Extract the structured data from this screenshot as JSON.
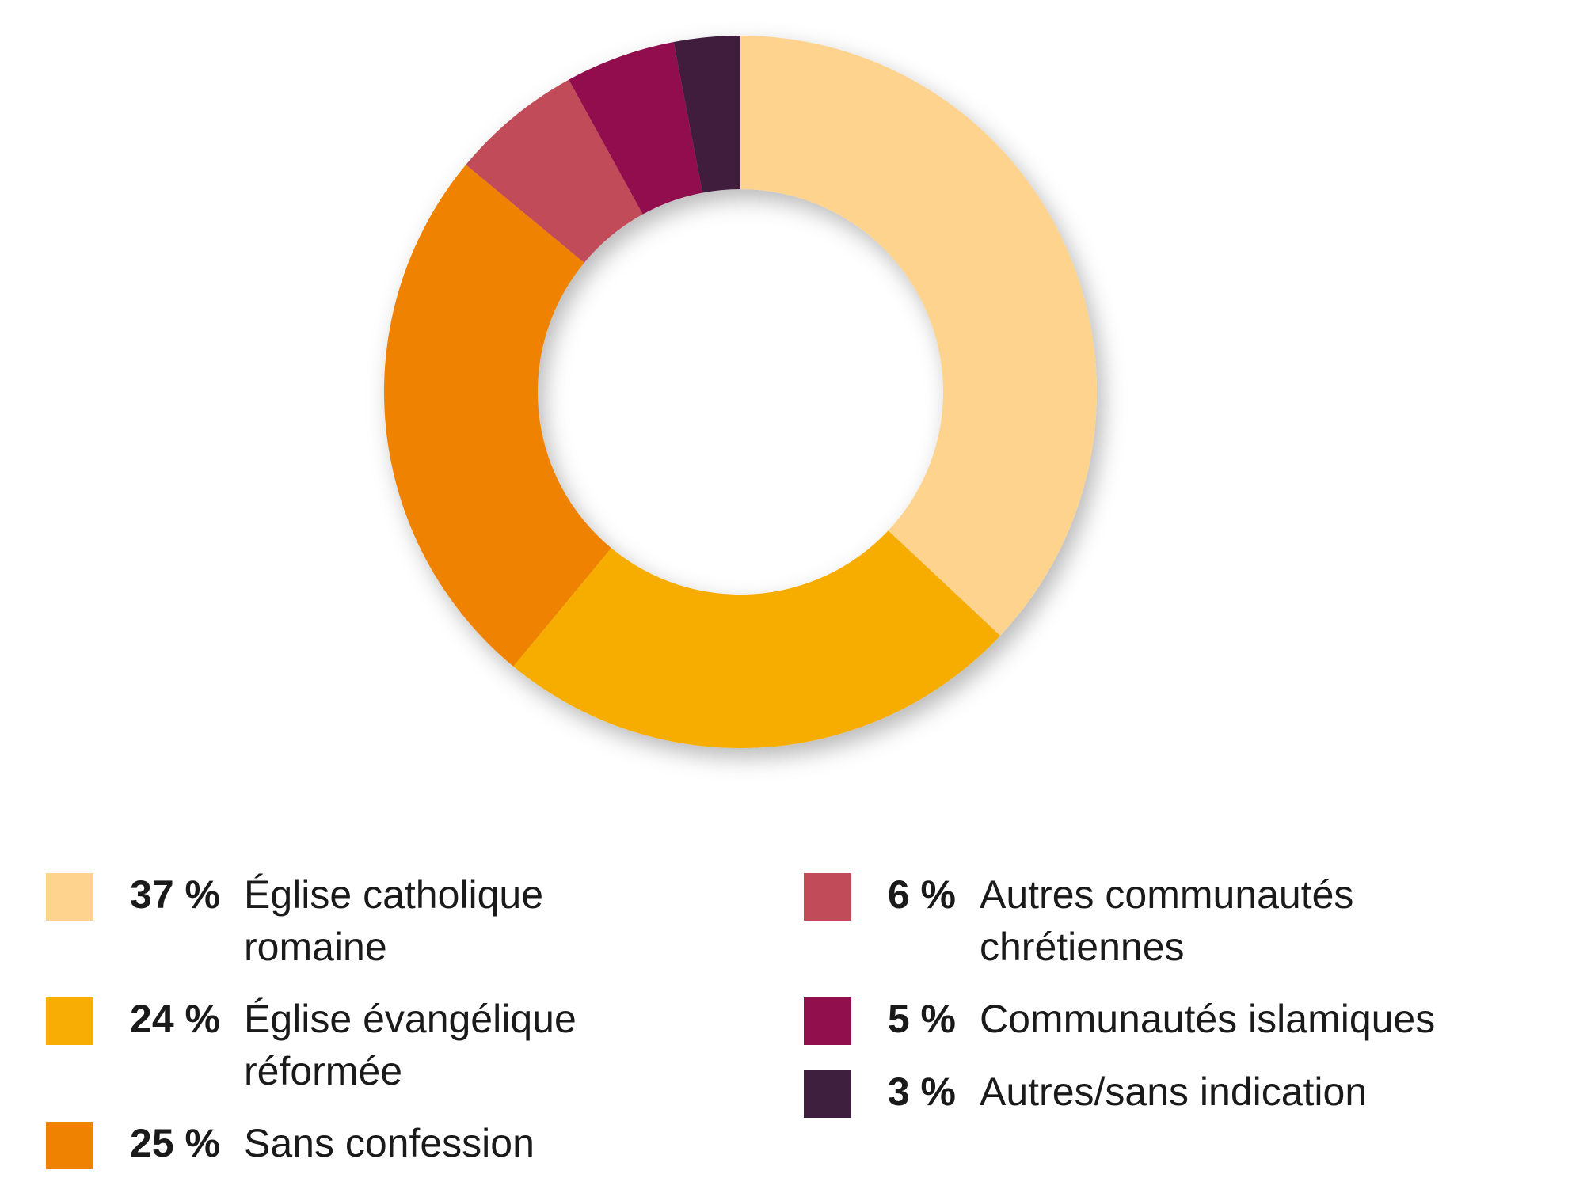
{
  "chart_data": {
    "type": "pie",
    "variant": "donut",
    "title": "",
    "legend_position": "bottom",
    "slices": [
      {
        "label": "Église catholique\nromaine",
        "value": 37,
        "pct_label": "37 %",
        "color": "#fdd38e"
      },
      {
        "label": "Église évangélique\nréformée",
        "value": 24,
        "pct_label": "24 %",
        "color": "#f7ad04"
      },
      {
        "label": "Sans confession",
        "value": 25,
        "pct_label": "25 %",
        "color": "#ef8200"
      },
      {
        "label": "Autres communautés\nchrétiennes",
        "value": 6,
        "pct_label": "6 %",
        "color": "#c24b5a"
      },
      {
        "label": "Communautés islamiques",
        "value": 5,
        "pct_label": "5 %",
        "color": "#920f4d"
      },
      {
        "label": "Autres/sans indication",
        "value": 3,
        "pct_label": "3 %",
        "color": "#3f1f3e"
      }
    ]
  }
}
